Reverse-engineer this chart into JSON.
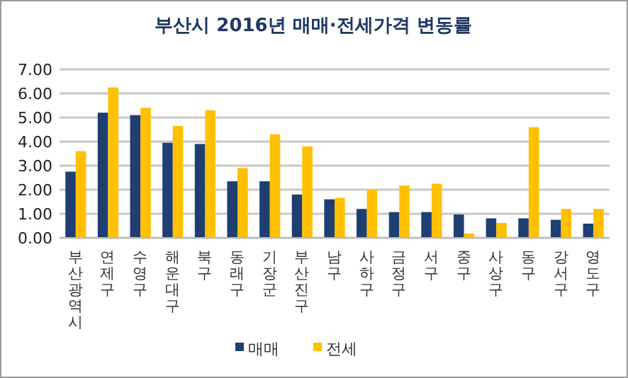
{
  "chart_data": {
    "type": "bar",
    "title": "부산시 2016년 매매·전세가격 변동률",
    "categories": [
      "부산광역시",
      "연제구",
      "수영구",
      "해운대구",
      "북구",
      "동래구",
      "기장군",
      "부산진구",
      "남구",
      "사하구",
      "금정구",
      "서구",
      "중구",
      "사상구",
      "동구",
      "강서구",
      "영도구"
    ],
    "series": [
      {
        "name": "매매",
        "color": "#1f3f73",
        "values": [
          2.75,
          5.2,
          5.1,
          3.95,
          3.9,
          2.35,
          2.35,
          1.8,
          1.6,
          1.2,
          1.07,
          1.07,
          0.97,
          0.81,
          0.81,
          0.75,
          0.59
        ]
      },
      {
        "name": "전세",
        "color": "#ffc000",
        "values": [
          3.6,
          6.25,
          5.4,
          4.65,
          5.3,
          2.9,
          4.3,
          3.8,
          1.66,
          1.99,
          2.17,
          2.25,
          0.18,
          0.62,
          4.6,
          1.2,
          1.2
        ]
      }
    ],
    "ylim": [
      0,
      7
    ],
    "yticks": [
      {
        "value": 0,
        "label": "0.00"
      },
      {
        "value": 1,
        "label": "1.00"
      },
      {
        "value": 2,
        "label": "2.00"
      },
      {
        "value": 3,
        "label": "3.00"
      },
      {
        "value": 4,
        "label": "4.00"
      },
      {
        "value": 5,
        "label": "5.00"
      },
      {
        "value": 6,
        "label": "6.00"
      },
      {
        "value": 7,
        "label": "7.00"
      }
    ],
    "grid": "y",
    "legend": "bottom"
  }
}
